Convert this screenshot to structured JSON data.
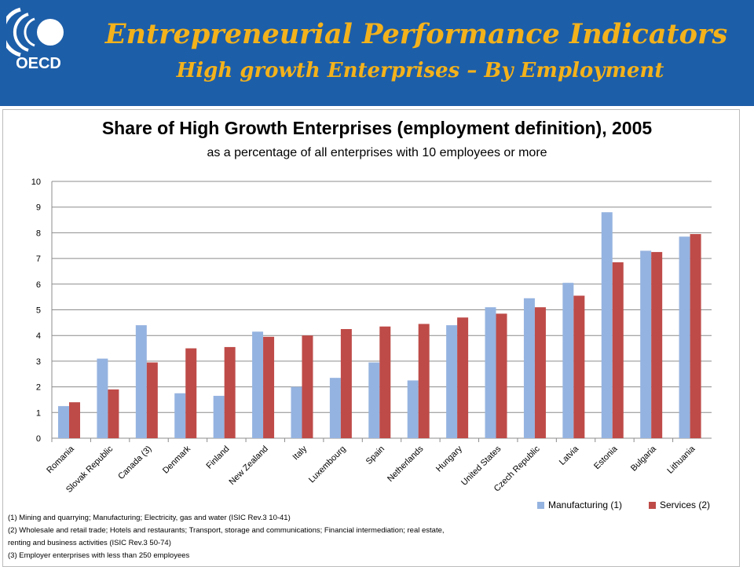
{
  "slide": {
    "title": "Entrepreneurial Performance Indicators",
    "subtitle": "High growth Enterprises – By Employment",
    "logo_text": "OECD",
    "colors": {
      "header_bg": "#1d5ea8",
      "title_color": "#f3b21b"
    }
  },
  "chart_data": {
    "type": "bar",
    "title": "Share of High Growth Enterprises (employment definition), 2005",
    "subtitle": "as a percentage of all enterprises with 10 employees or more",
    "categories": [
      "Romania",
      "Slovak Republic",
      "Canada (3)",
      "Denmark",
      "Finland",
      "New Zealand",
      "Italy",
      "Luxembourg",
      "Spain",
      "Netherlands",
      "Hungary",
      "United States",
      "Czech Republic",
      "Latvia",
      "Estonia",
      "Bulgaria",
      "Lithuania"
    ],
    "series": [
      {
        "name": "Manufacturing (1)",
        "color": "#95b3e0",
        "values": [
          1.25,
          3.1,
          4.4,
          1.75,
          1.65,
          4.15,
          2.0,
          2.35,
          2.95,
          2.25,
          4.4,
          5.1,
          5.45,
          6.05,
          8.8,
          7.3,
          7.85
        ]
      },
      {
        "name": "Services (2)",
        "color": "#be4b48",
        "values": [
          1.4,
          1.9,
          2.95,
          3.5,
          3.55,
          3.95,
          4.0,
          4.25,
          4.35,
          4.45,
          4.7,
          4.85,
          5.1,
          5.55,
          6.85,
          7.25,
          7.95
        ]
      }
    ],
    "ylim": [
      0,
      10
    ],
    "yticks": [
      "0",
      "1",
      "2",
      "3",
      "4",
      "5",
      "6",
      "7",
      "8",
      "9",
      "10"
    ],
    "grid": true,
    "legend_position": "bottom-right"
  },
  "notes": [
    "(1) Mining and quarrying; Manufacturing; Electricity, gas and water (ISIC Rev.3 10-41)",
    "(2) Wholesale and retail trade; Hotels and restaurants; Transport, storage and communications; Financial intermediation; real estate,",
    "renting and business activities (ISIC Rev.3 50-74)",
    "(3) Employer enterprises with less than 250 employees"
  ]
}
